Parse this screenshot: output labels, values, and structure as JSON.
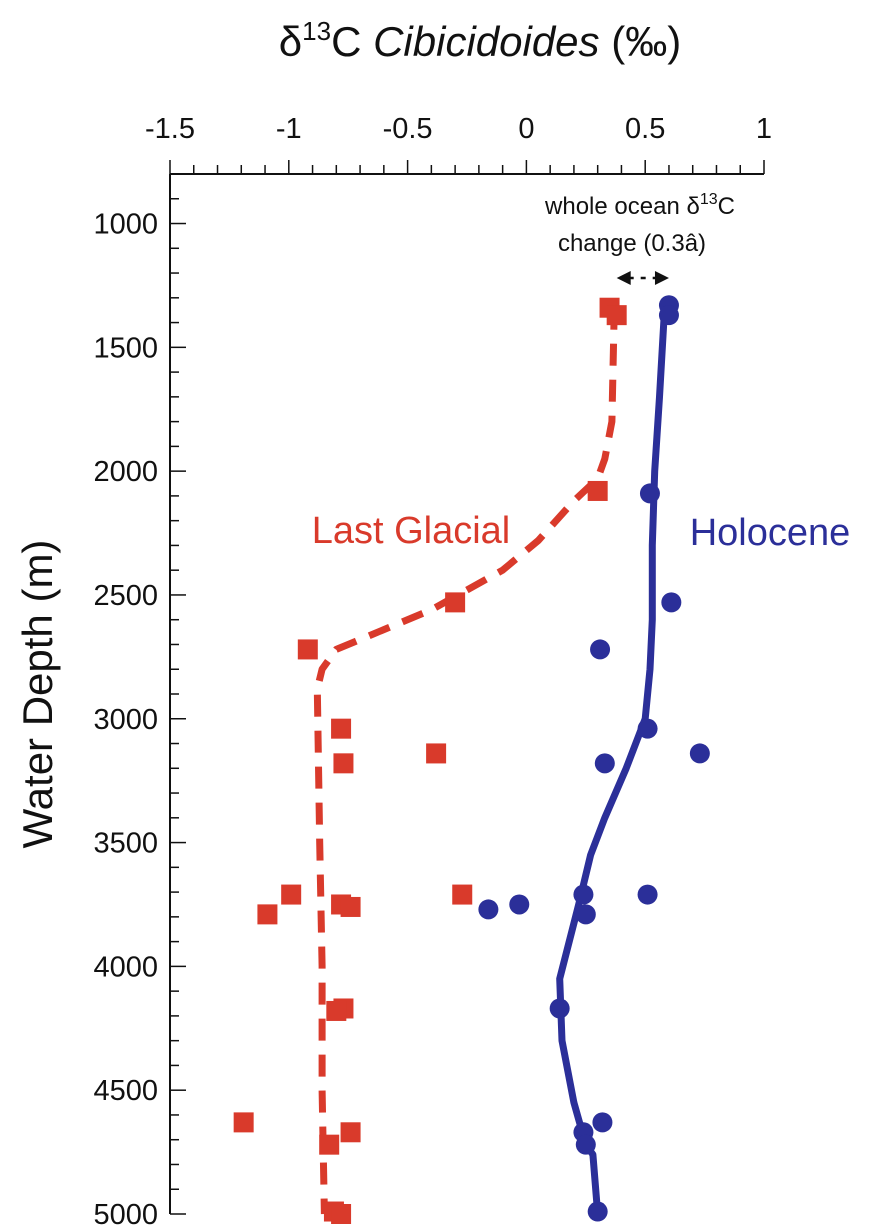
{
  "chart_data": {
    "type": "scatter",
    "title": "",
    "x_axis": {
      "label_prefix": "δ",
      "label_sup": "13",
      "label_after_sup": "C ",
      "label_italic": "Cibicidoides",
      "label_unit": " (‰)",
      "range": [
        -1.5,
        1.0
      ],
      "ticks": [
        -1.5,
        -1,
        -0.5,
        0,
        0.5,
        1
      ],
      "tick_labels": [
        "-1.5",
        "-1",
        "-0.5",
        "0",
        "0.5",
        "1"
      ],
      "position": "top"
    },
    "y_axis": {
      "label": "Water Depth (m)",
      "range": [
        800,
        5000
      ],
      "inverted": true,
      "ticks": [
        1000,
        1500,
        2000,
        2500,
        3000,
        3500,
        4000,
        4500,
        5000
      ],
      "tick_labels": [
        "1000",
        "1500",
        "2000",
        "2500",
        "3000",
        "3500",
        "4000",
        "4500",
        "5000"
      ]
    },
    "series": [
      {
        "name": "Last Glacial",
        "color": "#d93a2b",
        "marker": "square",
        "line_style": "dashed",
        "points": [
          [
            0.35,
            1340
          ],
          [
            0.38,
            1370
          ],
          [
            0.3,
            2080
          ],
          [
            -0.3,
            2530
          ],
          [
            -0.92,
            2720
          ],
          [
            -0.78,
            3040
          ],
          [
            -0.77,
            3180
          ],
          [
            -0.38,
            3140
          ],
          [
            -0.99,
            3710
          ],
          [
            -1.09,
            3790
          ],
          [
            -0.78,
            3750
          ],
          [
            -0.74,
            3760
          ],
          [
            -0.27,
            3710
          ],
          [
            -0.77,
            4170
          ],
          [
            -0.8,
            4180
          ],
          [
            -1.19,
            4630
          ],
          [
            -0.74,
            4670
          ],
          [
            -0.83,
            4720
          ],
          [
            -0.81,
            4990
          ],
          [
            -0.78,
            5000
          ]
        ],
        "trend": [
          [
            0.37,
            1340
          ],
          [
            0.36,
            1800
          ],
          [
            0.33,
            1950
          ],
          [
            0.3,
            2030
          ],
          [
            0.2,
            2120
          ],
          [
            0.05,
            2280
          ],
          [
            -0.1,
            2400
          ],
          [
            -0.4,
            2560
          ],
          [
            -0.7,
            2680
          ],
          [
            -0.8,
            2720
          ],
          [
            -0.86,
            2800
          ],
          [
            -0.88,
            2880
          ],
          [
            -0.87,
            3500
          ],
          [
            -0.86,
            4000
          ],
          [
            -0.86,
            4500
          ],
          [
            -0.85,
            5000
          ]
        ]
      },
      {
        "name": "Holocene",
        "color": "#2b2f99",
        "marker": "circle",
        "line_style": "solid",
        "points": [
          [
            0.6,
            1330
          ],
          [
            0.6,
            1370
          ],
          [
            0.52,
            2090
          ],
          [
            0.61,
            2530
          ],
          [
            0.31,
            2720
          ],
          [
            0.51,
            3040
          ],
          [
            0.73,
            3140
          ],
          [
            0.33,
            3180
          ],
          [
            0.51,
            3710
          ],
          [
            0.24,
            3710
          ],
          [
            -0.16,
            3770
          ],
          [
            -0.03,
            3750
          ],
          [
            0.25,
            3790
          ],
          [
            0.14,
            4170
          ],
          [
            0.32,
            4630
          ],
          [
            0.24,
            4670
          ],
          [
            0.25,
            4720
          ],
          [
            0.3,
            4990
          ]
        ],
        "trend": [
          [
            0.58,
            1370
          ],
          [
            0.56,
            1700
          ],
          [
            0.54,
            2000
          ],
          [
            0.53,
            2300
          ],
          [
            0.53,
            2600
          ],
          [
            0.52,
            2800
          ],
          [
            0.5,
            3000
          ],
          [
            0.42,
            3200
          ],
          [
            0.33,
            3400
          ],
          [
            0.27,
            3550
          ],
          [
            0.22,
            3750
          ],
          [
            0.14,
            4050
          ],
          [
            0.15,
            4300
          ],
          [
            0.2,
            4550
          ],
          [
            0.25,
            4720
          ],
          [
            0.28,
            4760
          ],
          [
            0.3,
            5000
          ]
        ]
      }
    ],
    "annotation": {
      "line1_prefix": "whole ocean δ",
      "line1_sup": "13",
      "line1_suffix": "C",
      "line2": "change (0.3â)",
      "arrow_from": 0.38,
      "arrow_to": 0.6,
      "arrow_depth": 1220
    },
    "series_labels": {
      "glacial": "Last Glacial",
      "holocene": "Holocene"
    }
  }
}
